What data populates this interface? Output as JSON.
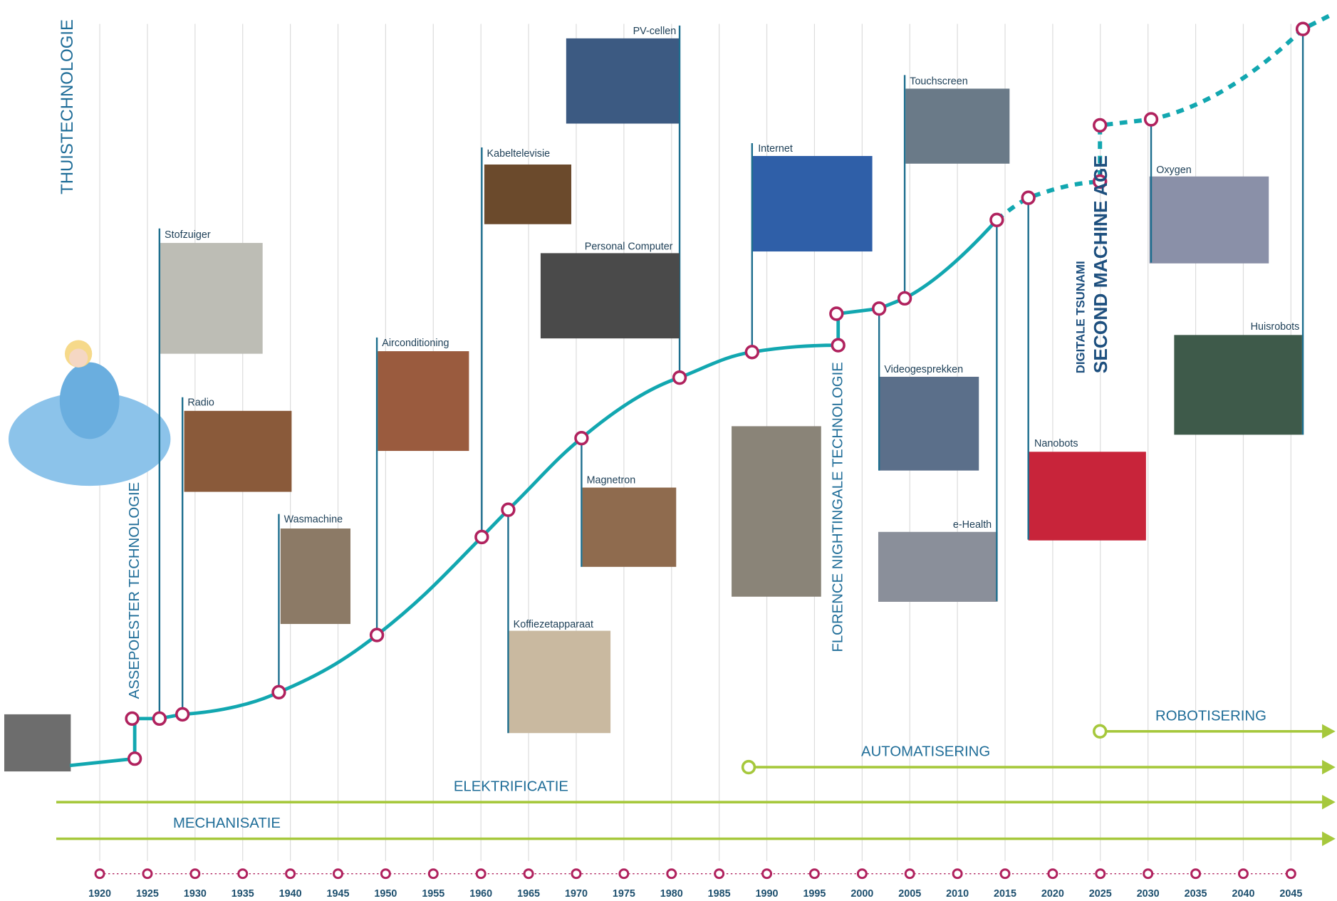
{
  "title": "THUISTECHNOLOGIE",
  "side_labels": [
    "ASSEPOESTER TECHNOLOGIE",
    "FLORENCE NIGHTINGALE TECHNOLOGIE",
    "DIGITALE TSUNAMI",
    "SECOND MACHINE AGE"
  ],
  "phases": [
    "MECHANISATIE",
    "ELEKTRIFICATIE",
    "AUTOMATISERING",
    "ROBOTISERING"
  ],
  "milestones": [
    {
      "label": "Stofzuiger"
    },
    {
      "label": "Radio"
    },
    {
      "label": "Wasmachine"
    },
    {
      "label": "Airconditioning"
    },
    {
      "label": "Kabeltelevisie"
    },
    {
      "label": "Koffiezetapparaat"
    },
    {
      "label": "Magnetron"
    },
    {
      "label": "PV-cellen"
    },
    {
      "label": "Personal Computer"
    },
    {
      "label": "Internet"
    },
    {
      "label": "Videogesprekken"
    },
    {
      "label": "e-Health"
    },
    {
      "label": "Touchscreen"
    },
    {
      "label": "Nanobots"
    },
    {
      "label": "Oxygen"
    },
    {
      "label": "Huisrobots"
    }
  ],
  "years": [
    "1920",
    "1925",
    "1930",
    "1935",
    "1940",
    "1945",
    "1950",
    "1955",
    "1960",
    "1965",
    "1970",
    "1975",
    "1980",
    "1985",
    "1990",
    "1995",
    "2000",
    "2005",
    "2010",
    "2015",
    "2020",
    "2025",
    "2030",
    "2035",
    "2040",
    "2045"
  ]
}
